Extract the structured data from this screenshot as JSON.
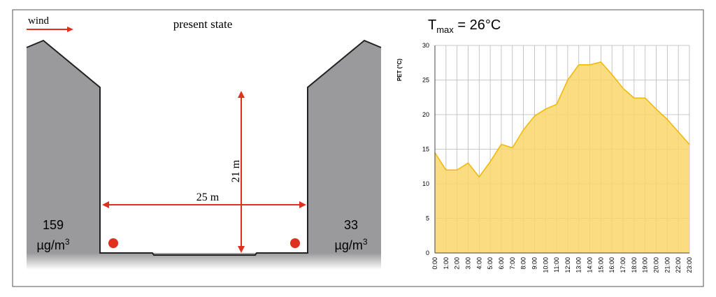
{
  "diagram": {
    "wind": "wind",
    "title": "present state",
    "height_label": "21 m",
    "width_label": "25 m",
    "left_value": {
      "number": "159",
      "unit": "µg/m",
      "unit_sup": "3"
    },
    "right_value": {
      "number": "33",
      "unit": "µg/m",
      "unit_sup": "3"
    }
  },
  "chart_data": {
    "type": "area",
    "title": [
      "T",
      "max",
      " = 26°C"
    ],
    "y_label": "PET (°C)",
    "categories": [
      "0:00",
      "1:00",
      "2:00",
      "3:00",
      "4:00",
      "5:00",
      "6:00",
      "7:00",
      "8:00",
      "9:00",
      "10:00",
      "11:00",
      "12:00",
      "13:00",
      "14:00",
      "15:00",
      "16:00",
      "17:00",
      "18:00",
      "19:00",
      "20:00",
      "21:00",
      "22:00",
      "23:00"
    ],
    "values": [
      14.5,
      12,
      12,
      13,
      11,
      13.2,
      15.7,
      15.2,
      17.8,
      19.8,
      20.8,
      21.5,
      25,
      27.2,
      27.2,
      27.6,
      25.8,
      23.8,
      22.4,
      22.4,
      20.8,
      19.3,
      17.5,
      15.7
    ],
    "color": "#f9d66b",
    "line_color": "#f2b705",
    "ylim": [
      0,
      30
    ],
    "yticks": [
      0,
      5,
      10,
      15,
      20,
      25,
      30
    ],
    "grid": true
  }
}
